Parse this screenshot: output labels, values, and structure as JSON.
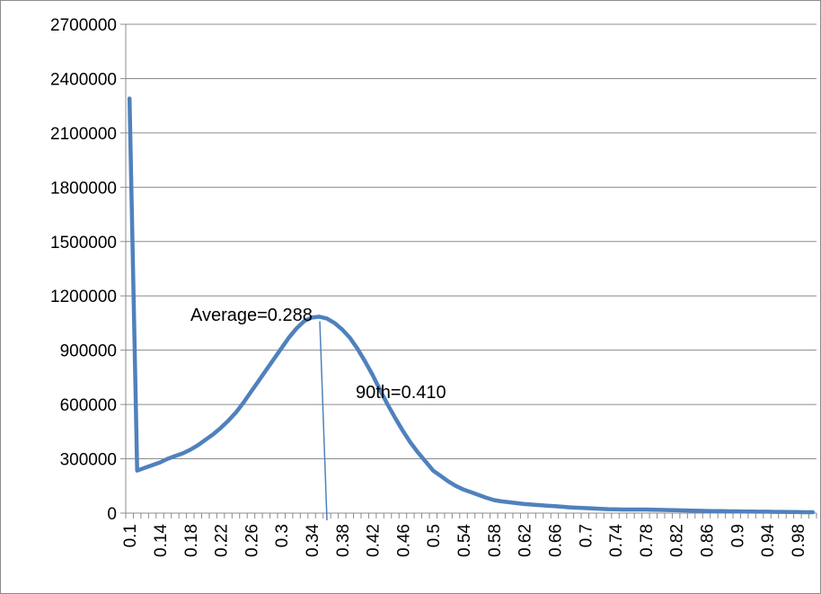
{
  "chart_data": {
    "type": "line",
    "title": "",
    "xlabel": "",
    "ylabel": "",
    "ylim": [
      0,
      2700000
    ],
    "y_ticks": [
      0,
      300000,
      600000,
      900000,
      1200000,
      1500000,
      1800000,
      2100000,
      2400000,
      2700000
    ],
    "y_tick_labels": [
      "0",
      "300000",
      "600000",
      "900000",
      "1200000",
      "1500000",
      "1800000",
      "2100000",
      "2400000",
      "2700000"
    ],
    "x": [
      0.1,
      0.11,
      0.12,
      0.13,
      0.14,
      0.15,
      0.16,
      0.17,
      0.18,
      0.19,
      0.2,
      0.21,
      0.22,
      0.23,
      0.24,
      0.25,
      0.26,
      0.27,
      0.28,
      0.29,
      0.3,
      0.31,
      0.32,
      0.33,
      0.34,
      0.35,
      0.36,
      0.37,
      0.38,
      0.39,
      0.4,
      0.41,
      0.42,
      0.43,
      0.44,
      0.45,
      0.46,
      0.47,
      0.48,
      0.49,
      0.5,
      0.51,
      0.52,
      0.53,
      0.54,
      0.55,
      0.56,
      0.57,
      0.58,
      0.59,
      0.6,
      0.61,
      0.62,
      0.63,
      0.64,
      0.65,
      0.66,
      0.67,
      0.68,
      0.69,
      0.7,
      0.71,
      0.72,
      0.73,
      0.74,
      0.75,
      0.76,
      0.77,
      0.78,
      0.79,
      0.8,
      0.81,
      0.82,
      0.83,
      0.84,
      0.85,
      0.86,
      0.87,
      0.88,
      0.89,
      0.9,
      0.91,
      0.92,
      0.93,
      0.94,
      0.95,
      0.96,
      0.97,
      0.98,
      0.99,
      1.0
    ],
    "x_tick_labels": [
      "0.1",
      "0.14",
      "0.18",
      "0.22",
      "0.26",
      "0.3",
      "0.34",
      "0.38",
      "0.42",
      "0.46",
      "0.5",
      "0.54",
      "0.58",
      "0.62",
      "0.66",
      "0.7",
      "0.74",
      "0.78",
      "0.82",
      "0.86",
      "0.9",
      "0.94",
      "0.98"
    ],
    "series": [
      {
        "color": "#4f81bd",
        "values": [
          2290000,
          235000,
          250000,
          265000,
          280000,
          300000,
          315000,
          330000,
          350000,
          375000,
          405000,
          435000,
          470000,
          510000,
          555000,
          610000,
          670000,
          730000,
          790000,
          850000,
          910000,
          970000,
          1020000,
          1060000,
          1080000,
          1085000,
          1075000,
          1050000,
          1015000,
          970000,
          910000,
          840000,
          765000,
          680000,
          600000,
          525000,
          455000,
          390000,
          335000,
          285000,
          235000,
          205000,
          175000,
          150000,
          130000,
          115000,
          100000,
          85000,
          72000,
          65000,
          60000,
          55000,
          50000,
          47000,
          44000,
          41000,
          38000,
          35000,
          32000,
          30000,
          28000,
          26000,
          24000,
          22000,
          21000,
          20000,
          20000,
          20000,
          20000,
          19000,
          18000,
          17000,
          16000,
          15000,
          14000,
          13000,
          12000,
          11000,
          11000,
          10000,
          10000,
          9000,
          9000,
          8000,
          8000,
          7000,
          7000,
          6000,
          6000,
          5000,
          5000
        ]
      }
    ],
    "reference_line": {
      "color": "#4f81bd",
      "y_top": 1060000,
      "y_bottom": 0
    },
    "annotations": {
      "average": "Average=0.288",
      "p90": "90th=0.410"
    },
    "grid": true
  }
}
